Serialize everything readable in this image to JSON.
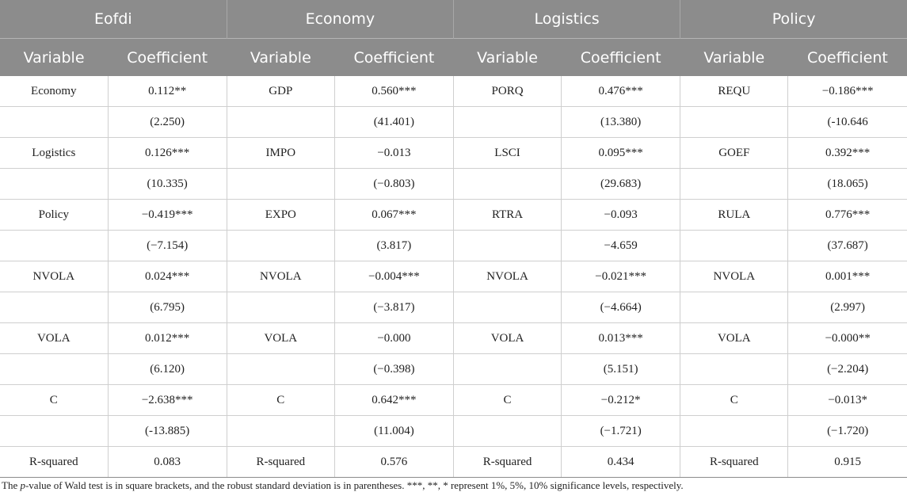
{
  "groups": [
    "Eofdi",
    "Economy",
    "Logistics",
    "Policy"
  ],
  "subheaders": {
    "variable": "Variable",
    "coefficient": "Coefficient"
  },
  "rows": [
    [
      "Economy",
      "0.112**",
      "GDP",
      "0.560***",
      "PORQ",
      "0.476***",
      "REQU",
      "−0.186***"
    ],
    [
      "",
      "(2.250)",
      "",
      "(41.401)",
      "",
      "(13.380)",
      "",
      "(-10.646"
    ],
    [
      "Logistics",
      "0.126***",
      "IMPO",
      "−0.013",
      "LSCI",
      "0.095***",
      "GOEF",
      "0.392***"
    ],
    [
      "",
      "(10.335)",
      "",
      "(−0.803)",
      "",
      "(29.683)",
      "",
      "(18.065)"
    ],
    [
      "Policy",
      "−0.419***",
      "EXPO",
      "0.067***",
      "RTRA",
      "−0.093",
      "RULA",
      "0.776***"
    ],
    [
      "",
      "(−7.154)",
      "",
      "(3.817)",
      "",
      "−4.659",
      "",
      "(37.687)"
    ],
    [
      "NVOLA",
      "0.024***",
      "NVOLA",
      "−0.004***",
      "NVOLA",
      "−0.021***",
      "NVOLA",
      "0.001***"
    ],
    [
      "",
      "(6.795)",
      "",
      "(−3.817)",
      "",
      "(−4.664)",
      "",
      "(2.997)"
    ],
    [
      "VOLA",
      "0.012***",
      "VOLA",
      "−0.000",
      "VOLA",
      "0.013***",
      "VOLA",
      "−0.000**"
    ],
    [
      "",
      "(6.120)",
      "",
      "(−0.398)",
      "",
      "(5.151)",
      "",
      "(−2.204)"
    ],
    [
      "C",
      "−2.638***",
      "C",
      "0.642***",
      "C",
      "−0.212*",
      "C",
      "−0.013*"
    ],
    [
      "",
      "(-13.885)",
      "",
      "(11.004)",
      "",
      "(−1.721)",
      "",
      "(−1.720)"
    ],
    [
      "R-squared",
      "0.083",
      "R-squared",
      "0.576",
      "R-squared",
      "0.434",
      "R-squared",
      "0.915"
    ]
  ],
  "footnote": {
    "before": "The ",
    "p": "p",
    "after": "-value of Wald test is in square brackets, and the robust standard deviation is in parentheses. ***, **, * represent 1%, 5%, 10% significance levels, respectively."
  }
}
